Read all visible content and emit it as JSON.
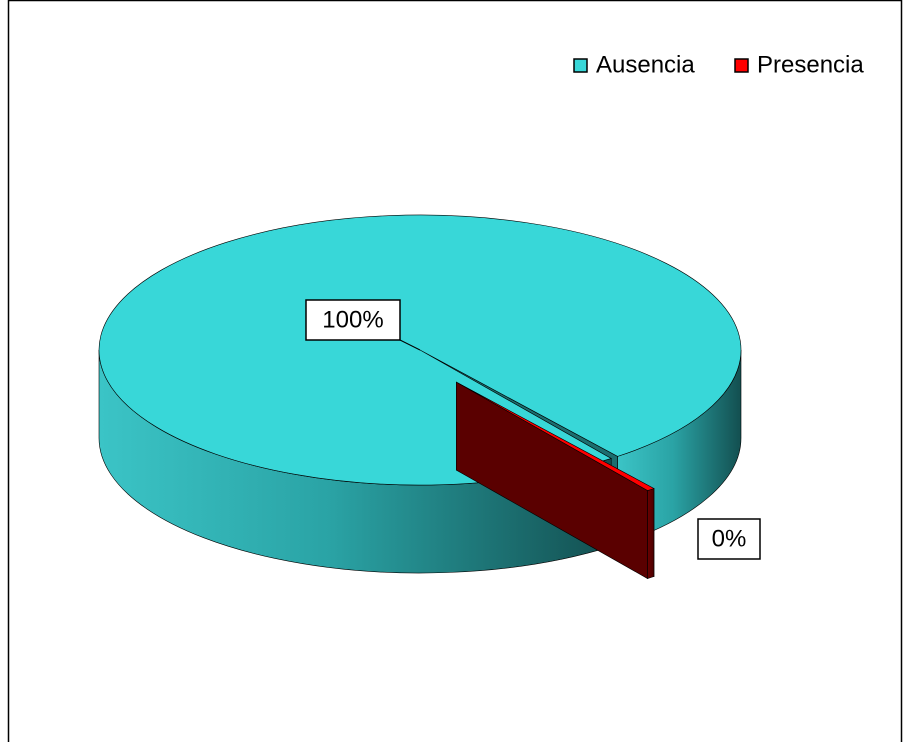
{
  "chart_data": {
    "type": "pie3d",
    "categories": [
      "Ausencia",
      "Presencia"
    ],
    "values": [
      99.6,
      0.4
    ],
    "value_labels": [
      "100%",
      "0%"
    ],
    "colors": [
      "#38d7d8",
      "#ff0000"
    ],
    "legend": "top-right"
  }
}
